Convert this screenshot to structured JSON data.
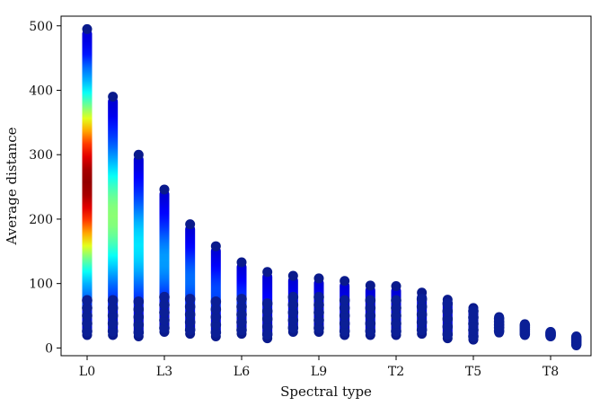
{
  "chart_data": {
    "type": "scatter",
    "title": "",
    "xlabel": "Spectral type",
    "ylabel": "Average distance",
    "x_categories": [
      "L0",
      "L1",
      "L2",
      "L3",
      "L4",
      "L5",
      "L6",
      "L7",
      "L8",
      "L9",
      "T0",
      "T1",
      "T2",
      "T3",
      "T4",
      "T5",
      "T6",
      "T7",
      "T8",
      "T9"
    ],
    "x_tick_labels": [
      "L0",
      "L3",
      "L6",
      "L9",
      "T2",
      "T5",
      "T8"
    ],
    "y_ticks": [
      0,
      100,
      200,
      300,
      400,
      500
    ],
    "ylim": [
      -12,
      515
    ],
    "grid": false,
    "colormap": "jet",
    "colormap_stops": [
      "#00007f",
      "#0000ff",
      "#007fff",
      "#00ffff",
      "#7fff7f",
      "#ffff00",
      "#ff7f00",
      "#ff0000",
      "#7f0000"
    ],
    "marker_color_low": "#00198c",
    "series": [
      {
        "category": "L0",
        "min": 20,
        "max": 495,
        "density_peak": 1.0
      },
      {
        "category": "L1",
        "min": 20,
        "max": 390,
        "density_peak": 0.48
      },
      {
        "category": "L2",
        "min": 18,
        "max": 300,
        "density_peak": 0.3
      },
      {
        "category": "L3",
        "min": 25,
        "max": 246,
        "density_peak": 0.22
      },
      {
        "category": "L4",
        "min": 22,
        "max": 192,
        "density_peak": 0.17
      },
      {
        "category": "L5",
        "min": 18,
        "max": 158,
        "density_peak": 0.13
      },
      {
        "category": "L6",
        "min": 22,
        "max": 133,
        "density_peak": 0.1
      },
      {
        "category": "L7",
        "min": 15,
        "max": 118,
        "density_peak": 0.06
      },
      {
        "category": "L8",
        "min": 25,
        "max": 112,
        "density_peak": 0.05
      },
      {
        "category": "L9",
        "min": 25,
        "max": 108,
        "density_peak": 0.05
      },
      {
        "category": "T0",
        "min": 20,
        "max": 104,
        "density_peak": 0.04
      },
      {
        "category": "T1",
        "min": 20,
        "max": 97,
        "density_peak": 0.04
      },
      {
        "category": "T2",
        "min": 20,
        "max": 96,
        "density_peak": 0.04
      },
      {
        "category": "T3",
        "min": 22,
        "max": 86,
        "density_peak": 0.03
      },
      {
        "category": "T4",
        "min": 15,
        "max": 75,
        "density_peak": 0.03
      },
      {
        "category": "T5",
        "min": 13,
        "max": 62,
        "density_peak": 0.02
      },
      {
        "category": "T6",
        "min": 24,
        "max": 48,
        "density_peak": 0.02
      },
      {
        "category": "T7",
        "min": 20,
        "max": 37,
        "density_peak": 0.01
      },
      {
        "category": "T8",
        "min": 18,
        "max": 25,
        "density_peak": 0.01
      },
      {
        "category": "T9",
        "min": 4,
        "max": 18,
        "density_peak": 0.01
      }
    ]
  }
}
